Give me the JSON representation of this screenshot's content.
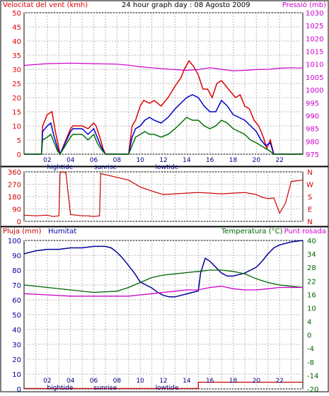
{
  "colors": {
    "wind_speed": "#e00000",
    "wind_gust": "#0000cc",
    "wind_avg": "#007000",
    "pressure": "#cc00cc",
    "direction": "#cc0000",
    "humidity": "#000099",
    "temperature": "#006400",
    "dewpoint": "#cc00cc",
    "rain": "#cc0000",
    "frame": "#000000",
    "grid": "#b8b8b8",
    "background": "#ffffff"
  },
  "chart_data": [
    {
      "id": "wind-pressure",
      "type": "line",
      "title": "24 hour graph day : 08 Agosto 2009",
      "ylabel_left": "Velocitat del vent (kmh)",
      "ylabel_right": "Pressió (mb)",
      "ylim_left": [
        0,
        50
      ],
      "ylim_right": [
        975,
        1030
      ],
      "yticks_left": [
        "0",
        "5",
        "10",
        "15",
        "20",
        "25",
        "30",
        "35",
        "40",
        "45",
        "50"
      ],
      "yticks_right": [
        "975",
        "980",
        "985",
        "990",
        "995",
        "1000",
        "1005",
        "1010",
        "1015",
        "1020",
        "1025",
        "1030"
      ],
      "xlim": [
        0,
        24
      ],
      "xticks": [
        "02",
        "04",
        "06",
        "08",
        "10",
        "12",
        "14",
        "16",
        "18",
        "20",
        "22"
      ],
      "annotations": [
        {
          "text": "hightide",
          "x": 3.1
        },
        {
          "text": "sunrise",
          "x": 7.0
        },
        {
          "text": "lowtide",
          "x": 12.3
        }
      ],
      "grid": true,
      "series": [
        {
          "key": "wind_speed",
          "x": [
            0,
            1.5,
            1.6,
            2,
            2.4,
            2.7,
            3.0,
            3.1,
            4,
            4.2,
            5,
            5.5,
            6,
            6.2,
            6.6,
            6.8,
            7,
            8,
            9,
            9.3,
            9.6,
            10,
            10.3,
            10.8,
            11.2,
            11.8,
            12.4,
            13,
            13.5,
            13.8,
            14.2,
            14.6,
            15,
            15.4,
            15.8,
            16.2,
            16.6,
            17,
            17.4,
            17.8,
            18.2,
            18.6,
            19,
            19.4,
            19.8,
            20.2,
            20.6,
            20.9,
            21.2,
            21.5,
            24
          ],
          "y": [
            0,
            0,
            10,
            14,
            15,
            8,
            2,
            0,
            9,
            10,
            10,
            9,
            11,
            10,
            5,
            2,
            0,
            0,
            0,
            10,
            12,
            17,
            19,
            18,
            19,
            17,
            20,
            24,
            27,
            30,
            33,
            31,
            28,
            23,
            23,
            20,
            25,
            26,
            24,
            22,
            20,
            21,
            17,
            16,
            12,
            10,
            6,
            2,
            5,
            0,
            0
          ]
        },
        {
          "key": "wind_gust",
          "x": [
            0,
            1.5,
            1.6,
            2,
            2.3,
            2.6,
            2.9,
            3.1,
            4,
            4.2,
            5,
            5.5,
            6,
            6.3,
            6.6,
            7,
            8,
            9,
            9.3,
            9.6,
            10,
            10.4,
            10.8,
            11.2,
            11.8,
            12.4,
            13,
            13.5,
            14,
            14.5,
            15,
            15.5,
            16,
            16.5,
            17,
            17.5,
            18,
            18.5,
            19,
            19.5,
            20,
            20.4,
            20.8,
            21.2,
            21.5,
            24
          ],
          "y": [
            0,
            0,
            8,
            10,
            11,
            6,
            2,
            0,
            8,
            9,
            9,
            7,
            9,
            6,
            3,
            0,
            0,
            0,
            6,
            9,
            10,
            12,
            13,
            12,
            11,
            13,
            16,
            18,
            20,
            21,
            20,
            17,
            15,
            15,
            19,
            17,
            14,
            13,
            12,
            10,
            8,
            5,
            3,
            4,
            0,
            0
          ]
        },
        {
          "key": "wind_avg",
          "x": [
            0,
            1.5,
            1.6,
            2,
            2.3,
            2.6,
            2.9,
            3.1,
            4,
            4.2,
            5,
            5.5,
            6,
            6.3,
            6.6,
            7,
            8,
            9,
            9.3,
            9.6,
            10,
            10.4,
            10.8,
            11.2,
            11.8,
            12.4,
            13,
            13.5,
            14,
            14.5,
            15,
            15.5,
            16,
            16.5,
            17,
            17.5,
            18,
            18.5,
            19,
            19.5,
            20,
            20.4,
            20.8,
            21.2,
            21.5,
            24
          ],
          "y": [
            0,
            0,
            5,
            6,
            7,
            4,
            1,
            0,
            6,
            7,
            7,
            5,
            7,
            4,
            2,
            0,
            0,
            0,
            3,
            6,
            7,
            8,
            7,
            7,
            6,
            7,
            9,
            11,
            13,
            12,
            12,
            10,
            9,
            10,
            12,
            11,
            9,
            8,
            7,
            5,
            4,
            3,
            2,
            1,
            0,
            0
          ]
        },
        {
          "key": "pressure",
          "axis": "right",
          "x": [
            0,
            2,
            4,
            6,
            8,
            9,
            10,
            11,
            12,
            13,
            14,
            15,
            16,
            17,
            18,
            19,
            20,
            21,
            22,
            23,
            24
          ],
          "y": [
            1009.5,
            1010.2,
            1010.4,
            1010.2,
            1010.0,
            1009.6,
            1009.0,
            1008.6,
            1008.2,
            1007.9,
            1007.6,
            1007.9,
            1008.6,
            1008.0,
            1007.4,
            1007.6,
            1007.9,
            1008.0,
            1008.4,
            1008.6,
            1008.5
          ]
        }
      ]
    },
    {
      "id": "wind-direction",
      "type": "line",
      "yticks_left": [
        "0",
        "90",
        "180",
        "270",
        "360"
      ],
      "yticks_right": [
        "N",
        "W",
        "S",
        "E",
        "N"
      ],
      "ylim": [
        0,
        360
      ],
      "xlim": [
        0,
        24
      ],
      "grid": true,
      "series": [
        {
          "key": "direction",
          "x": [
            0,
            1,
            2,
            2.5,
            3,
            3.1,
            3.2,
            3.6,
            4,
            5,
            5.5,
            6,
            6.5,
            6.6,
            6.7,
            7,
            8,
            9,
            10,
            11,
            12,
            13,
            14,
            15,
            16,
            17,
            18,
            19,
            20,
            20.5,
            21,
            21.5,
            22,
            22.5,
            23,
            24
          ],
          "y": [
            45,
            40,
            45,
            35,
            40,
            350,
            360,
            355,
            50,
            40,
            40,
            35,
            40,
            350,
            345,
            340,
            320,
            300,
            250,
            220,
            195,
            200,
            205,
            210,
            205,
            200,
            205,
            210,
            195,
            175,
            165,
            170,
            60,
            130,
            290,
            300
          ]
        }
      ]
    },
    {
      "id": "humidity-temperature",
      "type": "line",
      "ylabel_left_1": "Pluja (mm)",
      "ylabel_left_2": "Humitat",
      "ylabel_right_1": "Temperatura (°C)",
      "ylabel_right_2": "Punt rosada",
      "yticks_left": [
        "0",
        "10",
        "20",
        "30",
        "40",
        "50",
        "60",
        "70",
        "80",
        "90",
        "100"
      ],
      "yticks_right": [
        "-20",
        "-14",
        "-8",
        "-4",
        "0",
        "4",
        "10",
        "16",
        "22",
        "28",
        "34",
        "40"
      ],
      "ylim_left": [
        0,
        100
      ],
      "ylim_right": [
        -20,
        40
      ],
      "xlim": [
        0,
        24
      ],
      "xticks": [
        "02",
        "04",
        "06",
        "08",
        "10",
        "12",
        "14",
        "16",
        "18",
        "20",
        "22"
      ],
      "annotations": [
        {
          "text": "hightide",
          "x": 3.1
        },
        {
          "text": "sunrise",
          "x": 7.0
        },
        {
          "text": "lowtide",
          "x": 12.3
        }
      ],
      "grid": true,
      "series": [
        {
          "key": "humidity",
          "axis": "left",
          "x": [
            0,
            1,
            2,
            3,
            4,
            5,
            6,
            7,
            7.5,
            8,
            8.5,
            9,
            9.5,
            10,
            10.5,
            11,
            11.5,
            12,
            12.5,
            13,
            13.5,
            14,
            14.5,
            15,
            15.2,
            15.6,
            16,
            16.5,
            17,
            17.5,
            18,
            18.5,
            19,
            19.5,
            20,
            20.5,
            21,
            21.5,
            22,
            23,
            24
          ],
          "y": [
            91,
            93,
            94,
            94,
            95,
            95,
            96,
            96,
            95,
            92,
            88,
            83,
            78,
            72,
            70,
            68,
            65,
            63,
            62,
            62,
            63,
            64,
            65,
            66,
            78,
            88,
            86,
            82,
            78,
            76,
            76,
            77,
            78,
            80,
            82,
            86,
            91,
            95,
            97,
            99,
            100
          ]
        },
        {
          "key": "temperature",
          "axis": "right",
          "x": [
            0,
            2,
            4,
            6,
            8,
            9,
            10,
            11,
            12,
            13,
            14,
            15,
            16,
            17,
            18,
            19,
            20,
            21,
            22,
            23,
            24
          ],
          "y": [
            22,
            21,
            20,
            19,
            19.5,
            21,
            23,
            25,
            26,
            26.5,
            27,
            27.5,
            28,
            28,
            27.5,
            26.5,
            24.5,
            23,
            22,
            21.5,
            21
          ]
        },
        {
          "key": "dewpoint",
          "axis": "right",
          "x": [
            0,
            2,
            4,
            6,
            8,
            9,
            10,
            11,
            12,
            13,
            14,
            15,
            16,
            17,
            18,
            19,
            20,
            21,
            22,
            23,
            24
          ],
          "y": [
            18.5,
            18,
            17.5,
            17.5,
            17.5,
            17.5,
            18,
            18.5,
            19,
            19.5,
            20,
            20,
            21,
            21.5,
            20.5,
            20,
            20,
            20.5,
            21,
            21,
            21
          ]
        },
        {
          "key": "rain",
          "axis": "left",
          "x": [
            0,
            15.0,
            15.0,
            24
          ],
          "y": [
            0.3,
            0.3,
            4.5,
            4.5
          ]
        }
      ]
    }
  ]
}
